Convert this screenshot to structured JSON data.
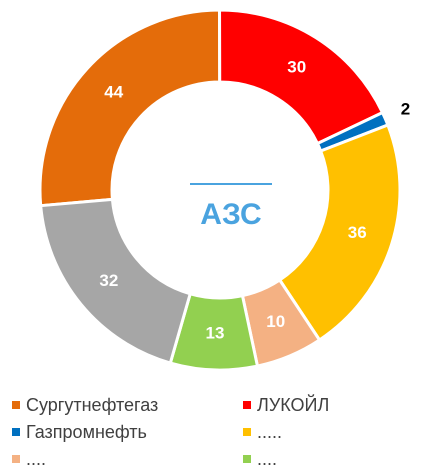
{
  "chart_data": {
    "type": "donut",
    "title": "АЗС",
    "categories": [
      "Сургутнефтегаз",
      "ЛУКОЙЛ",
      "Газпромнефть",
      ".....",
      "....",
      "....",
      null
    ],
    "values": [
      44,
      30,
      2,
      36,
      10,
      13,
      32
    ],
    "colors": [
      "#e46c0a",
      "#ff0000",
      "#0070c0",
      "#ffc000",
      "#f4b183",
      "#92d050",
      "#a6a6a6"
    ],
    "legend": "bottom"
  }
}
